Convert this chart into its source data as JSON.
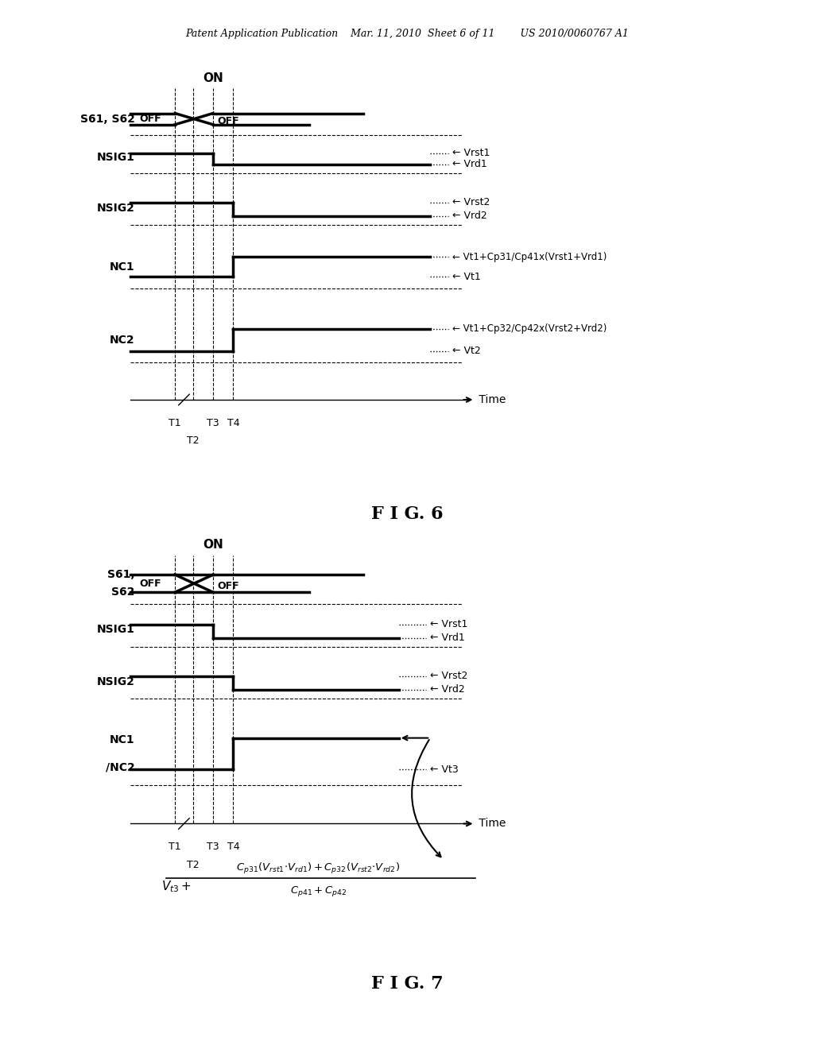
{
  "bg_color": "#ffffff",
  "header_text": "Patent Application Publication    Mar. 11, 2010  Sheet 6 of 11        US 2010/0060767 A1",
  "fig6_title": "F I G. 6",
  "fig7_title": "F I G. 7"
}
